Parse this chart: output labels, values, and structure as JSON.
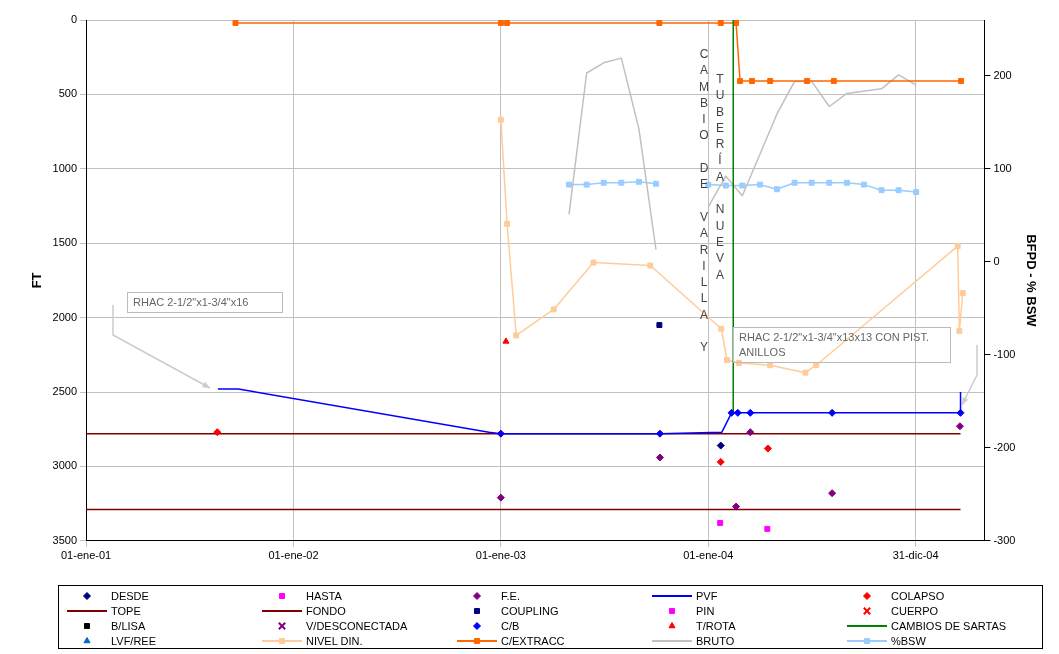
{
  "chart_data": {
    "type": "scatter",
    "xlabel": null,
    "ylabel": "FT",
    "y2label": "BFPD - % BSW",
    "xlim": [
      "2001-01-01",
      "2005-05-01"
    ],
    "xticks": [
      {
        "value": "2001-01-01",
        "label": "01-ene-01"
      },
      {
        "value": "2002-01-01",
        "label": "01-ene-02"
      },
      {
        "value": "2003-01-01",
        "label": "01-ene-03"
      },
      {
        "value": "2004-01-01",
        "label": "01-ene-04"
      },
      {
        "value": "2004-12-31",
        "label": "31-dic-04"
      }
    ],
    "ylim": [
      3500,
      0
    ],
    "yticks": [
      0,
      500,
      1000,
      1500,
      2000,
      2500,
      3000,
      3500
    ],
    "y2lim": [
      -300,
      260
    ],
    "y2ticks": [
      -300,
      -200,
      -100,
      0,
      100,
      200
    ],
    "grid": true,
    "legend": "bottom",
    "series": [
      {
        "name": "DESDE",
        "type": "scatter",
        "marker": "diamond",
        "color": "#000080",
        "x": [
          "2004-01-23"
        ],
        "values": [
          2860
        ]
      },
      {
        "name": "HASTA",
        "type": "scatter",
        "marker": "square",
        "color": "#ff00ff",
        "x": [
          "2004-01-22",
          "2004-04-14"
        ],
        "values": [
          3380,
          3420
        ]
      },
      {
        "name": "F.E.",
        "type": "scatter",
        "marker": "diamond",
        "color": "#800080",
        "x": [
          "2003-01-01",
          "2003-10-08",
          "2004-02-19",
          "2004-03-15",
          "2004-08-06",
          "2005-03-19"
        ],
        "values": [
          3210,
          2940,
          3270,
          2770,
          3180,
          2730
        ]
      },
      {
        "name": "PVF",
        "type": "line",
        "marker": "none",
        "color": "#0000ff",
        "x": [
          "2001-08-21",
          "2001-09-26",
          "2002-12-11",
          "2003-01-01",
          "2003-10-08",
          "2004-01-25",
          "2004-02-11",
          "2005-03-20",
          "2005-03-20"
        ],
        "values": [
          2480,
          2480,
          2770,
          2780,
          2780,
          2770,
          2640,
          2640,
          2500
        ]
      },
      {
        "name": "COLAPSO",
        "type": "scatter",
        "marker": "diamond",
        "color": "#ff0000",
        "x": [
          "2001-08-20",
          "2004-01-23",
          "2004-04-15"
        ],
        "values": [
          2770,
          2970,
          2880
        ]
      },
      {
        "name": "TOPE",
        "type": "line",
        "marker": "none",
        "color": "#800000",
        "x": [
          "2001-01-01",
          "2005-03-20"
        ],
        "values": [
          2780,
          2780
        ]
      },
      {
        "name": "FONDO",
        "type": "line",
        "marker": "none",
        "color": "#800000",
        "x": [
          "2001-01-01",
          "2005-03-20"
        ],
        "values": [
          3290,
          3290
        ]
      },
      {
        "name": "COUPLING",
        "type": "scatter",
        "marker": "square",
        "color": "#000080",
        "x": [
          "2003-10-07"
        ],
        "values": [
          2050
        ]
      },
      {
        "name": "PIN",
        "type": "scatter",
        "marker": "square",
        "color": "#ff00ff"
      },
      {
        "name": "CUERPO",
        "type": "scatter",
        "marker": "cross",
        "color": "#ff0000"
      },
      {
        "name": "B/LISA",
        "type": "scatter",
        "marker": "square",
        "color": "#000000"
      },
      {
        "name": "V/DESCONECTADA",
        "type": "scatter",
        "marker": "cross",
        "color": "#800080"
      },
      {
        "name": "C/B",
        "type": "scatter",
        "marker": "diamond",
        "color": "#0000ff",
        "x": [
          "2003-01-01",
          "2003-10-08",
          "2004-02-11",
          "2004-02-22",
          "2004-03-15",
          "2004-08-06",
          "2005-03-20"
        ],
        "values": [
          2780,
          2780,
          2640,
          2640,
          2640,
          2640,
          2640
        ]
      },
      {
        "name": "T/ROTA",
        "type": "scatter",
        "marker": "triangle",
        "color": "#ff0000",
        "x": [
          "2003-01-10"
        ],
        "values": [
          2160
        ]
      },
      {
        "name": "CAMBIOS DE SARTAS",
        "type": "line",
        "marker": "none",
        "color": "#008000",
        "x": [
          "2004-02-14",
          "2004-02-14"
        ],
        "values": [
          0,
          2640
        ]
      },
      {
        "name": "LVF/REE",
        "type": "scatter",
        "marker": "triangle",
        "color": "#0066cc"
      },
      {
        "name": "NIVEL DIN.",
        "type": "line",
        "marker": "square",
        "color": "#ffcc99",
        "x": [
          "2003-01-01",
          "2003-01-12",
          "2003-01-28",
          "2003-04-04",
          "2003-06-13",
          "2003-09-21",
          "2004-01-24",
          "2004-02-03",
          "2004-02-24",
          "2004-04-19",
          "2004-06-20",
          "2004-07-09",
          "2005-03-15",
          "2005-03-18",
          "2005-03-24"
        ],
        "values": [
          670,
          1370,
          2120,
          1945,
          1630,
          1650,
          2075,
          2285,
          2305,
          2320,
          2370,
          2320,
          1520,
          2090,
          1835
        ]
      },
      {
        "name": "C/EXTRACC",
        "type": "line",
        "marker": "square",
        "color": "#ff6600",
        "x": [
          "2001-09-21",
          "2003-01-01",
          "2003-01-12",
          "2003-10-07",
          "2004-01-23",
          "2004-02-19",
          "2004-02-26",
          "2004-03-18",
          "2004-04-19",
          "2004-06-23",
          "2004-08-09",
          "2005-03-21"
        ],
        "values": [
          20,
          20,
          20,
          20,
          20,
          20,
          410,
          410,
          410,
          410,
          410,
          410
        ]
      },
      {
        "name": "BRUTO",
        "type": "line",
        "marker": "none",
        "color": "#c0c0c0",
        "axis": "y2",
        "x": [
          "2003-05-01",
          "2003-06-01",
          "2003-07-01",
          "2003-08-01",
          "2003-09-01",
          "2003-10-01",
          "2003-10-15",
          "2004-01-01",
          "2004-02-01",
          "2004-03-01",
          "2004-05-01",
          "2004-06-01",
          "2004-07-01",
          "2004-08-01",
          "2004-09-01",
          "2004-11-01",
          "2004-12-01",
          "2005-01-01"
        ],
        "values": [
          51,
          203,
          214,
          219,
          143,
          13,
          null,
          59,
          92,
          71,
          159,
          194,
          194,
          167,
          181,
          186,
          201,
          190
        ]
      },
      {
        "name": "%BSW",
        "type": "line",
        "marker": "square",
        "color": "#99ccff",
        "axis": "y2",
        "x": [
          "2003-05-01",
          "2003-06-01",
          "2003-07-01",
          "2003-08-01",
          "2003-09-01",
          "2003-10-01",
          "2003-10-15",
          "2004-01-01",
          "2004-02-01",
          "2004-03-01",
          "2004-04-01",
          "2004-05-01",
          "2004-06-01",
          "2004-07-01",
          "2004-08-01",
          "2004-09-01",
          "2004-10-01",
          "2004-11-01",
          "2004-12-01",
          "2005-01-01"
        ],
        "values": [
          83,
          83,
          85,
          85,
          86,
          84,
          null,
          83,
          82,
          82,
          83,
          78,
          85,
          85,
          85,
          85,
          83,
          77,
          77,
          75
        ]
      }
    ],
    "annotations": [
      "RHAC 2-1/2\"x1-3/4\"x16",
      "RHAC 2-1/2\"x1-3/4\"x13x13 CON PIST. ANILLOS",
      "CAMBIO DE VARILLA Y",
      "TUBERÍA NUEVA"
    ]
  }
}
